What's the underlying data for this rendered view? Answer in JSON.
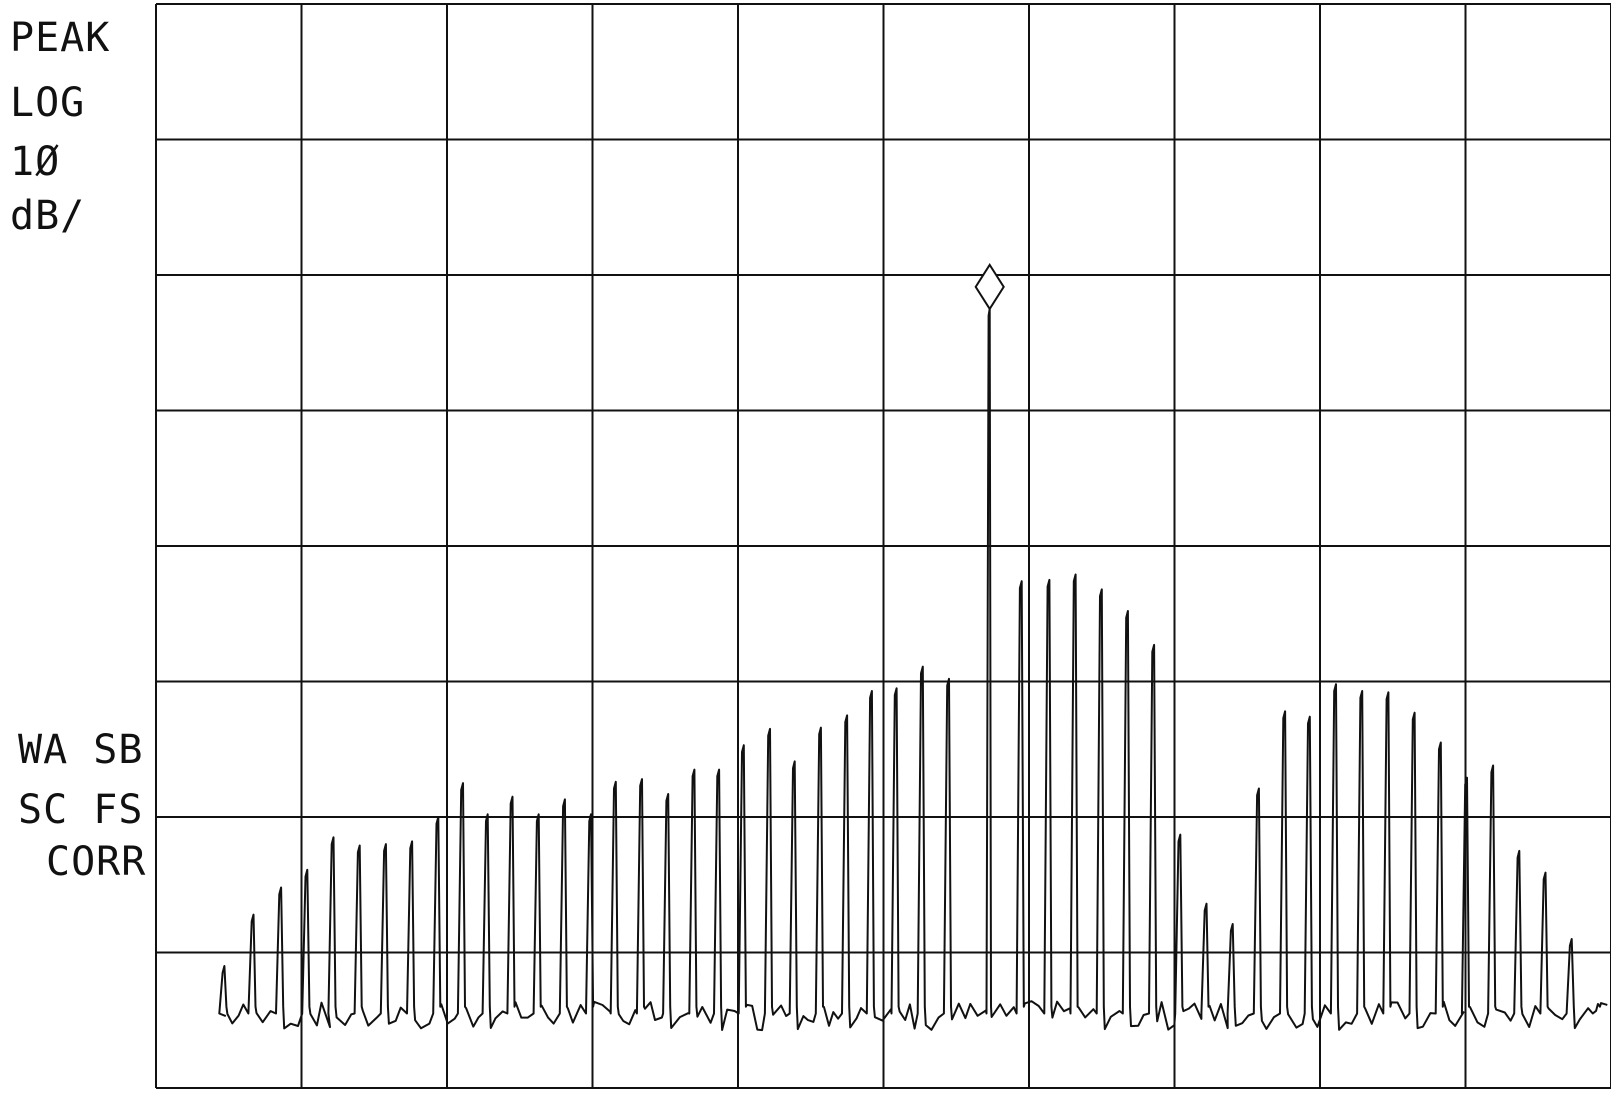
{
  "chart_data": {
    "type": "line",
    "title": "",
    "xlabel": "",
    "ylabel": "",
    "grid": true,
    "grid_divisions": {
      "x": 10,
      "y": 8
    },
    "y_scale": "log",
    "ylim_divisions": [
      0,
      8
    ],
    "annotations": {
      "detector": "PEAK",
      "scale": "LOG",
      "scale_value": "1Ø",
      "scale_unit": "dB/",
      "status_line1": "WA SB",
      "status_line2": "SC FS",
      "status_line3": "CORR"
    },
    "marker": {
      "shape": "diamond",
      "x_div": 5.73,
      "y_div": 5.75
    },
    "noise_floor_div": 0.5,
    "series": [
      {
        "x_div": [
          0.47,
          0.67,
          0.86,
          1.04,
          1.22,
          1.4,
          1.58,
          1.76,
          1.94,
          2.11,
          2.28,
          2.45,
          2.63,
          2.81,
          2.99,
          3.16,
          3.34,
          3.52,
          3.7,
          3.87,
          4.04,
          4.22,
          4.39,
          4.57,
          4.75,
          4.92,
          5.09,
          5.27,
          5.45,
          5.73,
          5.95,
          6.14,
          6.32,
          6.5,
          6.68,
          6.86,
          7.04,
          7.22,
          7.4,
          7.58,
          7.76,
          7.93,
          8.11,
          8.29,
          8.47,
          8.65,
          8.83,
          9.01,
          9.19,
          9.37,
          9.55,
          9.73,
          9.91
        ],
        "y_div": [
          0.9,
          1.28,
          1.48,
          1.61,
          1.85,
          1.79,
          1.8,
          1.82,
          2.0,
          2.25,
          2.02,
          2.15,
          2.02,
          2.13,
          2.02,
          2.26,
          2.28,
          2.17,
          2.35,
          2.35,
          2.53,
          2.65,
          2.41,
          2.66,
          2.75,
          2.93,
          2.95,
          3.11,
          3.02,
          5.75,
          3.74,
          3.75,
          3.79,
          3.68,
          3.52,
          3.27,
          1.87,
          1.36,
          1.21,
          2.21,
          2.78,
          2.74,
          2.98,
          2.93,
          2.92,
          2.77,
          2.55,
          2.29,
          2.38,
          1.75,
          1.59,
          1.1,
          0.62
        ]
      }
    ]
  }
}
